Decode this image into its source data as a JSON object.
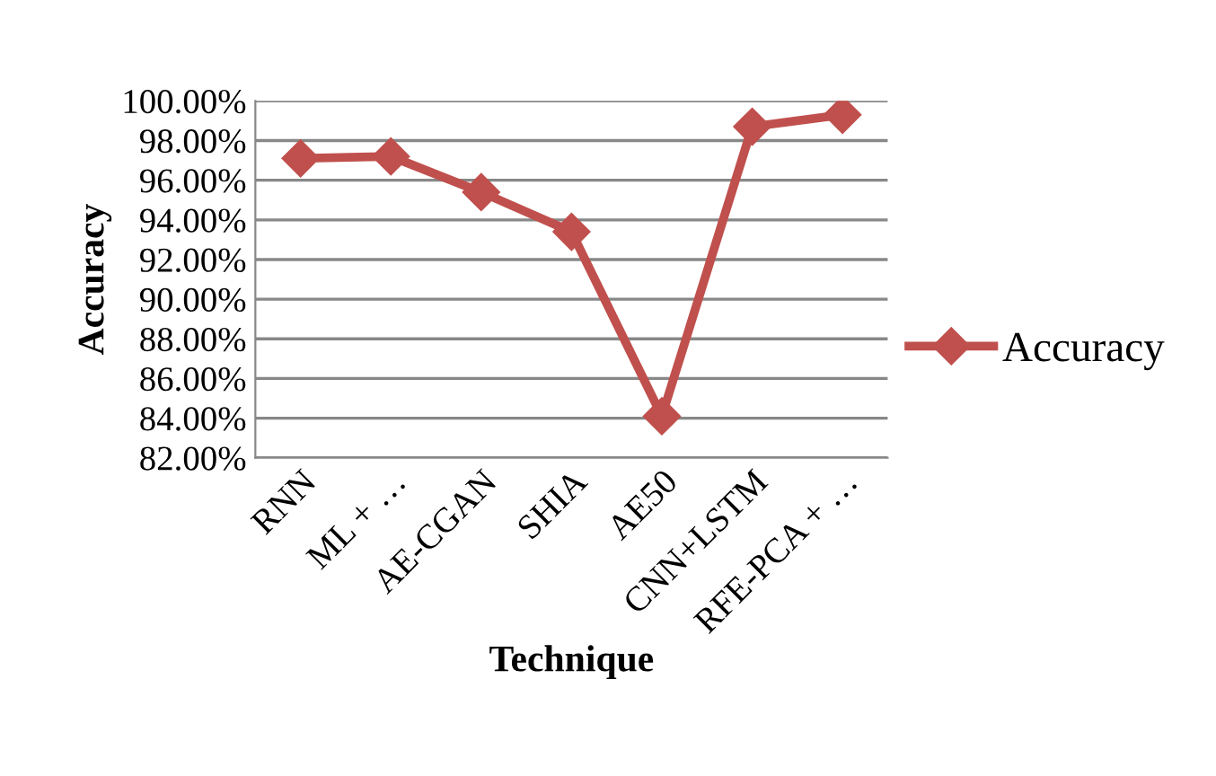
{
  "chart_data": {
    "type": "line",
    "xlabel": "Technique",
    "ylabel": "Accuracy",
    "categories": [
      "RNN",
      "ML + …",
      "AE-CGAN",
      "SHIA",
      "AE50",
      "CNN+LSTM",
      "RFE-PCA + …"
    ],
    "series": [
      {
        "name": "Accuracy",
        "color": "#c0504d",
        "values": [
          97.1,
          97.2,
          95.4,
          93.4,
          84.1,
          98.7,
          99.3
        ]
      }
    ],
    "ylim": [
      82,
      100
    ],
    "yticks": [
      {
        "value": 82,
        "label": "82.00%"
      },
      {
        "value": 84,
        "label": "84.00%"
      },
      {
        "value": 86,
        "label": "86.00%"
      },
      {
        "value": 88,
        "label": "88.00%"
      },
      {
        "value": 90,
        "label": "90.00%"
      },
      {
        "value": 92,
        "label": "92.00%"
      },
      {
        "value": 94,
        "label": "94.00%"
      },
      {
        "value": 96,
        "label": "96.00%"
      },
      {
        "value": 98,
        "label": "98.00%"
      },
      {
        "value": 100,
        "label": "100.00%"
      }
    ],
    "grid": "y",
    "legend": "right",
    "marker": "diamond",
    "line_style": "solid"
  }
}
